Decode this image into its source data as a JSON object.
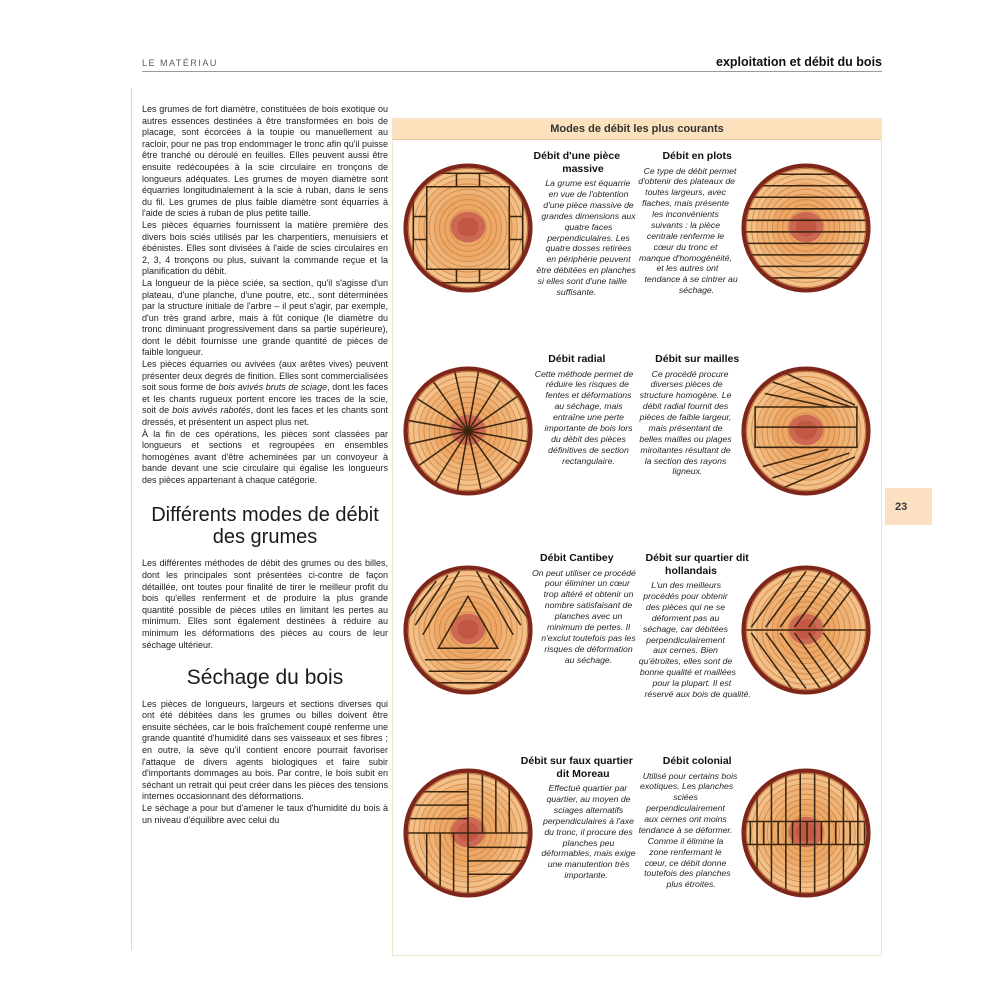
{
  "page": {
    "header_left": "LE MATÉRIAU",
    "header_right": "exploitation et débit du bois",
    "page_number": "23"
  },
  "left_column": {
    "intro_paragraphs": [
      "Les grumes de fort diamètre, constituées de bois exotique ou autres essences destinées à être transformées en bois de placage, sont écorcées à la toupie ou manuellement au racloir, pour ne pas trop endommager le tronc afin qu'il puisse être tranché ou déroulé en feuilles. Elles peuvent aussi être ensuite redécoupées à la scie circulaire en tronçons de longueurs adéquates. Les grumes de moyen diamètre sont équarries longitudinalement à la scie à ruban, dans le sens du fil. Les grumes de plus faible diamètre sont équarries à l'aide de scies à ruban de plus petite taille.",
      "Les pièces équarries fournissent la matière première des divers bois sciés utilisés par les charpentiers, menuisiers et ébénistes. Elles sont divisées à l'aide de scies circulaires en 2, 3, 4 tronçons ou plus, suivant la commande reçue et la planification du débit.",
      "La longueur de la pièce sciée, sa section, qu'il s'agisse d'un plateau, d'une planche, d'une poutre, etc., sont déterminées par la structure initiale de l'arbre – il peut s'agir, par exemple, d'un très grand arbre, mais à fût conique (le diamètre du tronc diminuant progressivement dans sa partie supérieure), dont le débit fournisse une grande quantité de pièces de faible longueur.",
      "Les pièces équarries ou avivées (aux arêtes vives) peuvent présenter deux degrés de finition. Elles sont commercialisées soit sous forme de *bois avivés bruts de sciage*, dont les faces et les chants rugueux portent encore les traces de la scie, soit de *bois avivés rabotés*, dont les faces et les chants sont dressés, et présentent un aspect plus net.",
      "À la fin de ces opérations, les pièces sont classées par longueurs et sections et regroupées en ensembles homogènes avant d'être acheminées par un convoyeur à bande devant une scie circulaire qui égalise les longueurs des pièces appartenant à chaque catégorie."
    ],
    "section1": {
      "title": "Différents modes de débit des grumes",
      "paragraphs": [
        "Les différentes méthodes de débit des grumes ou des billes, dont les principales sont présentées ci-contre de façon détaillée, ont toutes pour finalité de tirer le meilleur profit du bois qu'elles renferment et de produire la plus grande quantité possible de pièces utiles en limitant les pertes au minimum. Elles sont également destinées à réduire au minimum les déformations des pièces au cours de leur séchage ultérieur."
      ]
    },
    "section2": {
      "title": "Séchage du bois",
      "paragraphs": [
        "Les pièces de longueurs, largeurs et sections diverses qui ont été débitées dans les grumes ou billes doivent être ensuite séchées, car le bois fraîchement coupé renferme une grande quantité d'humidité dans ses vaisseaux et ses fibres ; en outre, la sève qu'il contient encore pourrait favoriser l'attaque de divers agents biologiques et faire subir d'importants dommages au bois. Par contre, le bois subit en séchant un retrait qui peut créer dans les pièces des tensions internes occasionnant des déformations.",
        "Le séchage a pour but d'amener le taux d'humidité du bois à un niveau d'équilibre avec celui du"
      ]
    }
  },
  "panel": {
    "title": "Modes de débit les plus courants",
    "figures": [
      {
        "pattern": "massive",
        "title": "Débit d'une pièce massive",
        "text": "La grume est équarrie en vue de l'obtention d'une pièce massive de grandes dimensions aux quatre faces perpendiculaires. Les quatre dosses retirées en périphérie peuvent être débitées en planches si elles sont d'une taille suffisante."
      },
      {
        "pattern": "plots",
        "title": "Débit en plots",
        "text": "Ce type de débit permet d'obtenir des plateaux de toutes largeurs, avec flaches, mais présente les inconvénients suivants : la pièce centrale renferme le cœur du tronc et manque d'homogénéité, et les autres ont tendance à se cintrer au séchage."
      },
      {
        "pattern": "radial",
        "title": "Débit radial",
        "text": "Cette méthode permet de réduire les risques de fentes et déformations au séchage, mais entraîne une perte importante de bois lors du débit des pièces définitives de section rectangulaire."
      },
      {
        "pattern": "mailles",
        "title": "Débit sur mailles",
        "text": "Ce procédé procure diverses pièces de structure homogène. Le débit radial fournit des pièces de faible largeur, mais présentant de belles mailles ou plages miroitantes résultant de la section des rayons ligneux."
      },
      {
        "pattern": "cantibey",
        "title": "Débit Cantibey",
        "text": "On peut utiliser ce procédé pour éliminer un cœur trop altéré et obtenir un nombre satisfaisant de planches avec un minimum de pertes. Il n'exclut toutefois pas les risques de déformation au séchage."
      },
      {
        "pattern": "hollandais",
        "title": "Débit sur quartier dit hollandais",
        "text": "L'un des meilleurs procédés pour obtenir des pièces qui ne se déforment pas au séchage, car débitées perpendiculairement aux cernes. Bien qu'étroites, elles sont de bonne qualité et maillées pour la plupart. Il est réservé aux bois de qualité."
      },
      {
        "pattern": "moreau",
        "title": "Débit sur faux quartier dit Moreau",
        "text": "Effectué quartier par quartier, au moyen de sciages alternatifs perpendiculaires à l'axe du tronc, il procure des planches peu déformables, mais exige une manutention très importante."
      },
      {
        "pattern": "colonial",
        "title": "Débit colonial",
        "text": "Utilisé pour certains bois exotiques. Les planches sciées perpendiculairement aux cernes ont moins tendance à se déformer. Comme il élimine la zone renfermant le cœur, ce débit donne toutefois des planches plus étroites."
      }
    ]
  },
  "colors": {
    "panel_header_bg": "#fbe2bd",
    "panel_border": "#e7c896",
    "page_number_bg": "#fbe0c2",
    "wood_outer": "#f4c089",
    "wood_mid": "#f0b377",
    "wood_inner": "#eda868",
    "growth_ring": "#c9823f",
    "bark": "#7e2619",
    "heartwood": "#cd6952",
    "heartwood_core": "#c25844",
    "cut_line": "#3b250e"
  }
}
